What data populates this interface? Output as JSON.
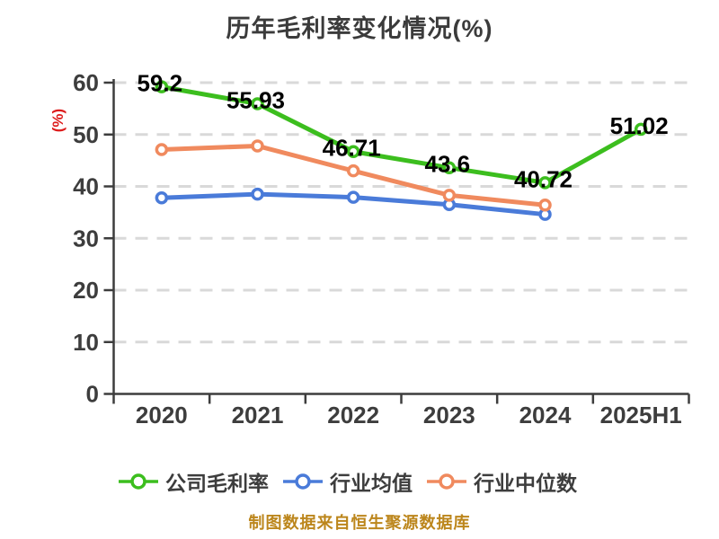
{
  "title": "历年毛利率变化情况(%)",
  "y_axis_label": "(%)",
  "footer_note": "制图数据来自恒生聚源数据库",
  "colors": {
    "company_line": "#3cbe1e",
    "industry_avg_line": "#4a7bd9",
    "industry_median_line": "#f08a5e",
    "axis": "#3d3d3d",
    "grid": "#d9d9d9",
    "data_label": "#000000",
    "y_axis_label_color": "#dd1c1c",
    "footer": "#bc861c"
  },
  "chart_data": {
    "type": "line",
    "title": "历年毛利率变化情况(%)",
    "categories": [
      "2020",
      "2021",
      "2022",
      "2023",
      "2024",
      "2025H1"
    ],
    "series": [
      {
        "key": "company-gross-margin",
        "name": "公司毛利率",
        "color": "#3cbe1e",
        "values": [
          59.2,
          55.93,
          46.71,
          43.6,
          40.72,
          51.02
        ],
        "labeled": true
      },
      {
        "key": "industry-average",
        "name": "行业均值",
        "color": "#4a7bd9",
        "values": [
          37.8,
          38.5,
          37.9,
          36.5,
          34.6
        ],
        "labeled": false
      },
      {
        "key": "industry-median",
        "name": "行业中位数",
        "color": "#f08a5e",
        "values": [
          47.1,
          47.8,
          43.0,
          38.3,
          36.4
        ],
        "labeled": false
      }
    ],
    "ylabel": "(%)",
    "ylim": [
      0,
      60
    ],
    "yticks": [
      0,
      10,
      20,
      30,
      40,
      50,
      60
    ],
    "grid": "horizontal-dashed",
    "legend_position": "bottom"
  }
}
